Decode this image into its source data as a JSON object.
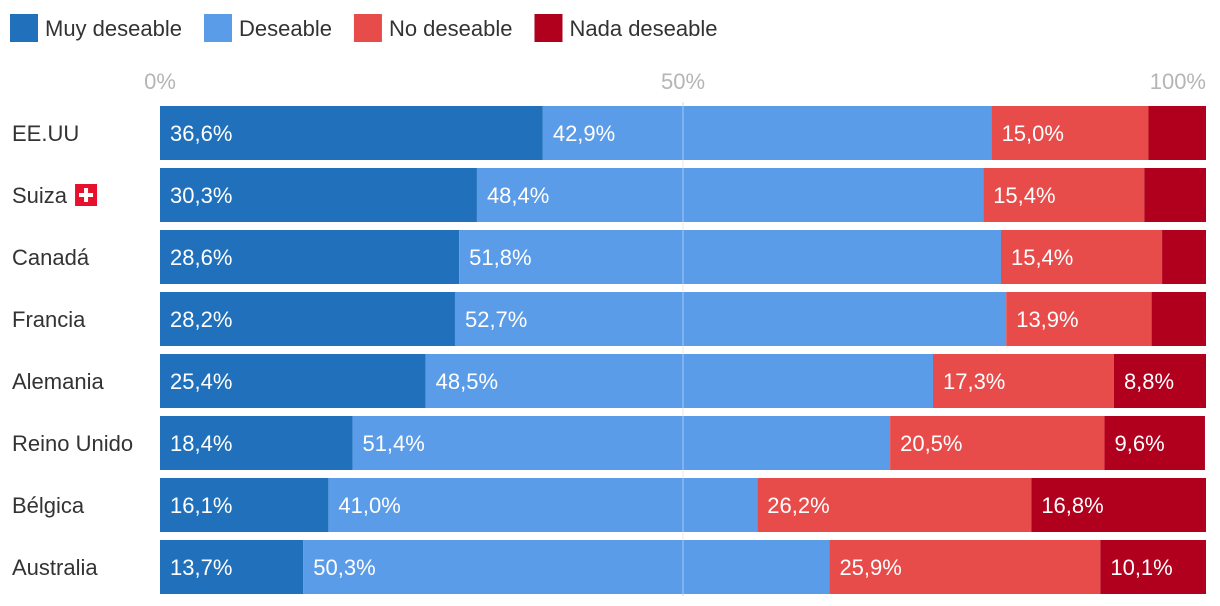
{
  "chart_data": {
    "type": "bar",
    "orientation": "horizontal",
    "stacked": true,
    "normalized": true,
    "title": "",
    "xlabel": "",
    "ylabel": "",
    "xlim": [
      0,
      100
    ],
    "x_ticks": [
      "0%",
      "50%",
      "100%"
    ],
    "legend_position": "top-left",
    "categories": [
      "EE.UU",
      "Suiza",
      "Canadá",
      "Francia",
      "Alemania",
      "Reino Unido",
      "Bélgica",
      "Australia"
    ],
    "series": [
      {
        "name": "Muy deseable",
        "color": "#2170bb",
        "values": [
          36.6,
          30.3,
          28.6,
          28.2,
          25.4,
          18.4,
          16.1,
          13.7
        ],
        "labels": [
          "36,6%",
          "30,3%",
          "28,6%",
          "28,2%",
          "25,4%",
          "18,4%",
          "16,1%",
          "13,7%"
        ]
      },
      {
        "name": "Deseable",
        "color": "#5b9ce8",
        "values": [
          42.9,
          48.4,
          51.8,
          52.7,
          48.5,
          51.4,
          41.0,
          50.3
        ],
        "labels": [
          "42,9%",
          "48,4%",
          "51,8%",
          "52,7%",
          "48,5%",
          "51,4%",
          "41,0%",
          "50,3%"
        ]
      },
      {
        "name": "No deseable",
        "color": "#e84c4a",
        "values": [
          15.0,
          15.4,
          15.4,
          13.9,
          17.3,
          20.5,
          26.2,
          25.9
        ],
        "labels": [
          "15,0%",
          "15,4%",
          "15,4%",
          "13,9%",
          "17,3%",
          "20,5%",
          "26,2%",
          "25,9%"
        ]
      },
      {
        "name": "Nada deseable",
        "color": "#b0001e",
        "values": [
          5.5,
          5.9,
          4.2,
          5.2,
          8.8,
          9.6,
          16.8,
          10.1
        ],
        "labels": [
          "",
          "",
          "",
          "",
          "8,8%",
          "9,6%",
          "16,8%",
          "10,1%"
        ]
      }
    ],
    "category_flags": [
      "",
      "swiss-flag-icon",
      "",
      "",
      "",
      "",
      "",
      ""
    ]
  }
}
